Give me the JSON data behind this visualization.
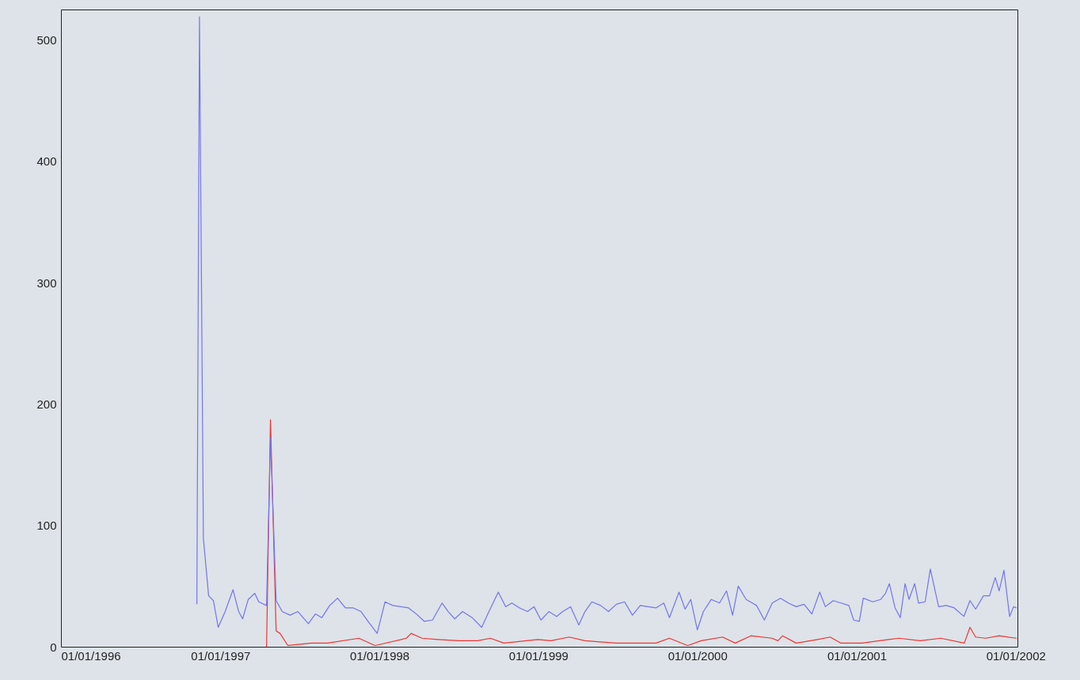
{
  "chart_data": {
    "type": "line",
    "xlim": [
      "1996-01-01",
      "2002-01-05"
    ],
    "xticks": [
      {
        "value": "1996-01-01",
        "label": "01/01/1996"
      },
      {
        "value": "1997-01-01",
        "label": "01/01/1997"
      },
      {
        "value": "1998-01-01",
        "label": "01/01/1998"
      },
      {
        "value": "1999-01-01",
        "label": "01/01/1999"
      },
      {
        "value": "2000-01-01",
        "label": "01/01/2000"
      },
      {
        "value": "2001-01-01",
        "label": "01/01/2001"
      },
      {
        "value": "2002-01-01",
        "label": "01/01/2002"
      }
    ],
    "ylim": [
      0,
      525
    ],
    "yticks": [
      0,
      100,
      200,
      300,
      400,
      500
    ],
    "grid": false,
    "marker": "none",
    "line_style": "solid",
    "series": [
      {
        "color": "#7474ee",
        "x": [
          "1996-11-08",
          "1996-11-14",
          "1996-11-23",
          "1996-12-05",
          "1996-12-16",
          "1996-12-27",
          "1997-01-12",
          "1997-01-30",
          "1997-02-12",
          "1997-02-21",
          "1997-03-06",
          "1997-03-21",
          "1997-03-30",
          "1997-04-17",
          "1997-04-26",
          "1997-05-09",
          "1997-05-23",
          "1997-06-10",
          "1997-06-28",
          "1997-07-22",
          "1997-08-07",
          "1997-08-22",
          "1997-09-09",
          "1997-09-27",
          "1997-10-15",
          "1997-11-02",
          "1997-11-20",
          "1997-12-08",
          "1997-12-27",
          "1998-01-14",
          "1998-02-01",
          "1998-02-19",
          "1998-03-09",
          "1998-03-27",
          "1998-04-14",
          "1998-05-03",
          "1998-05-25",
          "1998-06-08",
          "1998-06-23",
          "1998-07-11",
          "1998-08-02",
          "1998-08-24",
          "1998-09-07",
          "1998-10-01",
          "1998-10-18",
          "1998-11-01",
          "1998-11-19",
          "1998-12-07",
          "1998-12-22",
          "1999-01-07",
          "1999-01-25",
          "1999-02-12",
          "1999-02-26",
          "1999-03-16",
          "1999-04-04",
          "1999-04-18",
          "1999-05-04",
          "1999-05-24",
          "1999-06-11",
          "1999-06-29",
          "1999-07-18",
          "1999-08-05",
          "1999-08-23",
          "1999-09-10",
          "1999-09-28",
          "1999-10-16",
          "1999-10-29",
          "1999-11-20",
          "1999-12-04",
          "1999-12-17",
          "2000-01-01",
          "2000-01-15",
          "2000-02-02",
          "2000-02-21",
          "2000-03-08",
          "2000-03-22",
          "2000-04-04",
          "2000-04-22",
          "2000-05-16",
          "2000-06-03",
          "2000-06-21",
          "2000-07-10",
          "2000-07-28",
          "2000-08-15",
          "2000-09-02",
          "2000-09-20",
          "2000-10-08",
          "2000-10-21",
          "2000-11-08",
          "2000-11-26",
          "2000-12-14",
          "2000-12-25",
          "2001-01-07",
          "2001-01-16",
          "2001-02-07",
          "2001-02-25",
          "2001-03-08",
          "2001-03-17",
          "2001-03-30",
          "2001-04-11",
          "2001-04-22",
          "2001-05-01",
          "2001-05-14",
          "2001-05-23",
          "2001-06-07",
          "2001-06-19",
          "2001-07-08",
          "2001-07-26",
          "2001-08-13",
          "2001-09-04",
          "2001-09-18",
          "2001-10-01",
          "2001-10-19",
          "2001-11-02",
          "2001-11-15",
          "2001-11-24",
          "2001-12-05",
          "2001-12-18",
          "2001-12-27",
          "2002-01-03"
        ],
        "values": [
          35,
          519,
          89,
          42,
          38,
          16,
          29,
          47,
          29,
          23,
          39,
          44,
          37,
          34,
          172,
          38,
          29,
          26,
          29,
          19,
          27,
          24,
          34,
          40,
          32,
          32,
          29,
          20,
          11,
          37,
          34,
          33,
          32,
          27,
          21,
          22,
          36,
          29,
          23,
          29,
          24,
          16,
          27,
          45,
          33,
          36,
          32,
          29,
          33,
          22,
          29,
          25,
          29,
          33,
          18,
          29,
          37,
          34,
          29,
          35,
          37,
          26,
          34,
          33,
          32,
          36,
          24,
          45,
          31,
          39,
          14,
          29,
          39,
          36,
          46,
          26,
          50,
          39,
          34,
          22,
          36,
          40,
          36,
          33,
          35,
          27,
          45,
          33,
          38,
          36,
          34,
          22,
          21,
          40,
          37,
          39,
          44,
          52,
          32,
          24,
          52,
          39,
          52,
          36,
          37,
          64,
          33,
          34,
          32,
          25,
          38,
          31,
          42,
          42,
          57,
          46,
          63,
          25,
          33,
          32
        ]
      },
      {
        "color": "#ee3434",
        "x": [
          "1997-04-17",
          "1997-04-26",
          "1997-05-09",
          "1997-05-18",
          "1997-06-05",
          "1997-07-29",
          "1997-09-04",
          "1997-11-15",
          "1997-12-22",
          "1998-03-04",
          "1998-03-15",
          "1998-04-09",
          "1998-05-16",
          "1998-07-02",
          "1998-08-15",
          "1998-09-13",
          "1998-10-14",
          "1998-12-31",
          "1999-01-30",
          "1999-03-13",
          "1999-04-18",
          "1999-06-29",
          "1999-09-28",
          "1999-10-29",
          "1999-12-10",
          "2000-01-10",
          "2000-02-28",
          "2000-03-28",
          "2000-05-03",
          "2000-06-21",
          "2000-07-04",
          "2000-07-15",
          "2000-08-15",
          "2000-10-03",
          "2000-11-01",
          "2000-11-26",
          "2001-01-13",
          "2001-03-15",
          "2001-04-08",
          "2001-05-27",
          "2001-07-13",
          "2001-09-05",
          "2001-09-18",
          "2001-10-01",
          "2001-10-24",
          "2001-11-24",
          "2002-01-03"
        ],
        "values": [
          0,
          187,
          13,
          11,
          1,
          3,
          3,
          7,
          1,
          7,
          11,
          7,
          6,
          5,
          5,
          7,
          3,
          6,
          5,
          8,
          5,
          3,
          3,
          7,
          1,
          5,
          8,
          3,
          9,
          7,
          5,
          9,
          3,
          6,
          8,
          3,
          3,
          6,
          7,
          5,
          7,
          3,
          16,
          8,
          7,
          9,
          7
        ]
      }
    ]
  }
}
